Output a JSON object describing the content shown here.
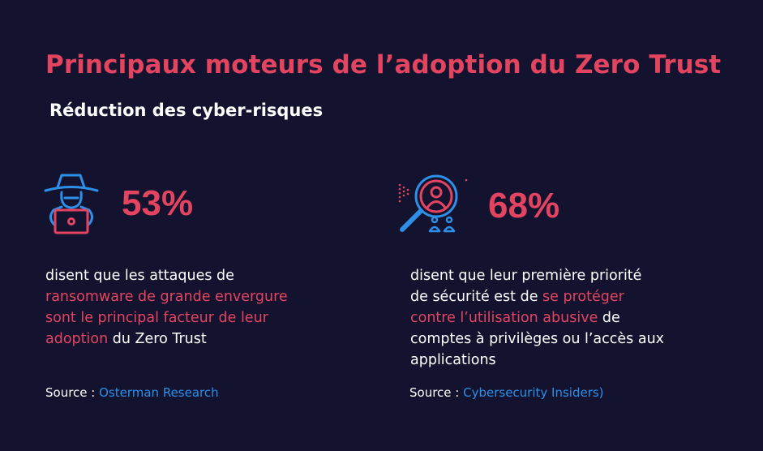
{
  "header": {
    "title": "Principaux moteurs de l’adoption du Zero Trust",
    "subtitle": "Réduction des cyber-risques"
  },
  "colors": {
    "background": "#131330",
    "accent": "#e3445f",
    "icon_blue": "#2e8fe6",
    "text": "#ffffff"
  },
  "stats": [
    {
      "icon": "hacker-laptop-icon",
      "value": "53%",
      "description": {
        "lines": [
          "disent que les attaques de",
          "ransomware de grande envergure",
          "sont le principal facteur de leur",
          "adoption",
          " du Zero Trust"
        ]
      },
      "source_label": "Source : ",
      "source_link": "Osterman Research"
    },
    {
      "icon": "magnifier-user-icon",
      "value": "68%",
      "description": {
        "lines": [
          "disent que leur première priorité",
          "de sécurité est de ",
          "se protéger",
          "contre l’utilisation abusive",
          " de",
          "comptes à privilèges ou l’accès aux",
          "applications"
        ]
      },
      "source_label": "Source : ",
      "source_link": " Cybersecurity Insiders)"
    }
  ]
}
